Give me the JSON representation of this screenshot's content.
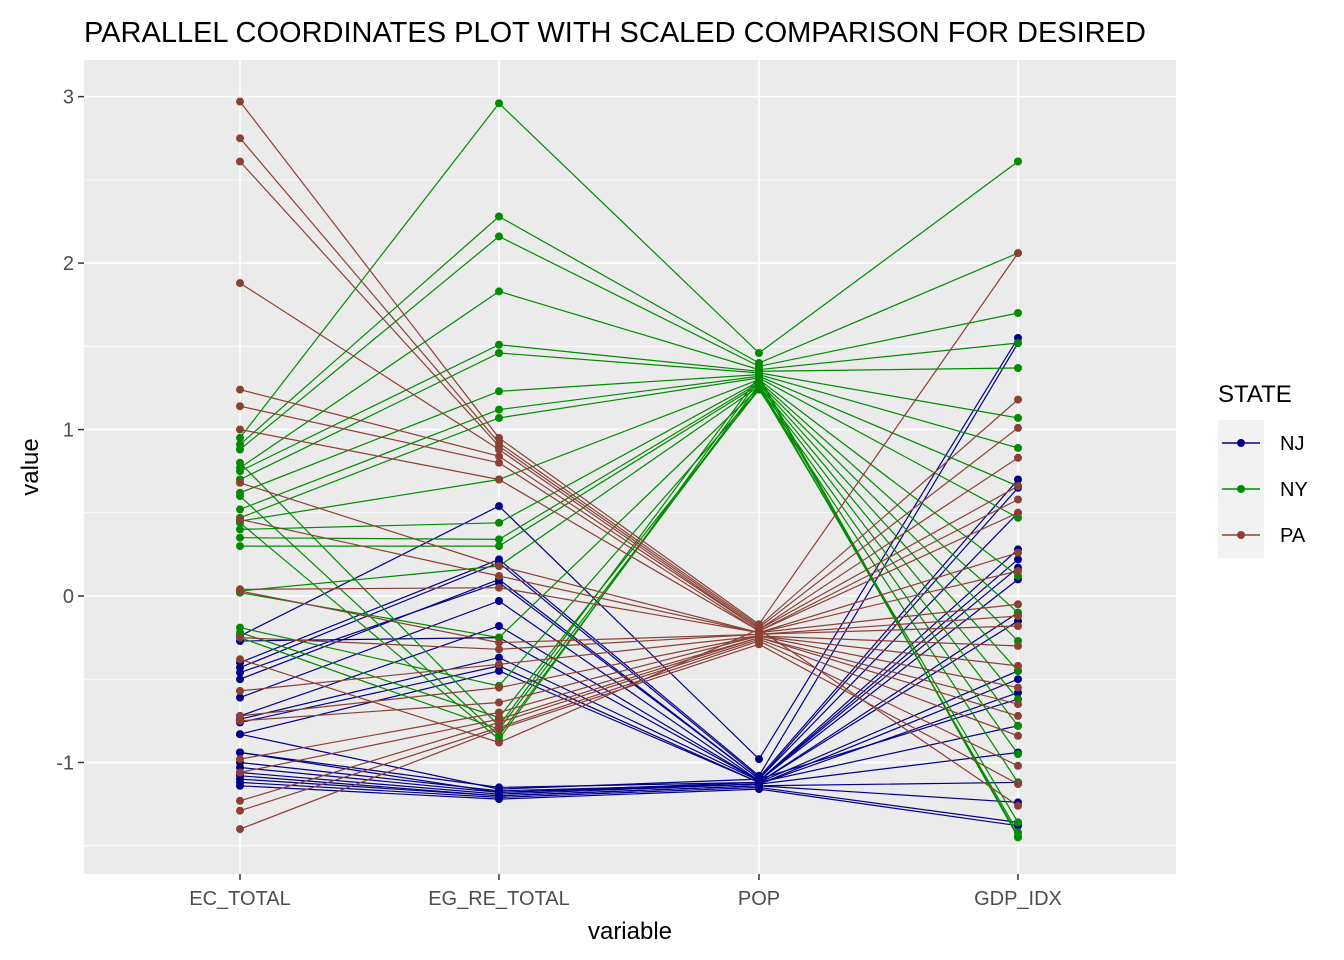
{
  "chart_data": {
    "type": "line",
    "title": "PARALLEL COORDINATES PLOT WITH SCALED COMPARISON FOR DESIRED",
    "xlabel": "variable",
    "ylabel": "value",
    "categories": [
      "EC_TOTAL",
      "EG_RE_TOTAL",
      "POP",
      "GDP_IDX"
    ],
    "ylim": [
      -1.67,
      3.22
    ],
    "yticks": [
      -1,
      0,
      1,
      2,
      3
    ],
    "yticklabels": [
      "-1",
      "0",
      "1",
      "2",
      "3"
    ],
    "grid": true,
    "legend": {
      "title": "STATE",
      "position": "right"
    },
    "colors": {
      "NJ": "#00008b",
      "NY": "#008b00",
      "PA": "#8b4035"
    },
    "series": [
      {
        "name": "NJ",
        "lines": [
          [
            -0.24,
            0.54,
            -0.98,
            1.55
          ],
          [
            -0.4,
            0.22,
            -1.08,
            1.52
          ],
          [
            -0.43,
            0.2,
            -1.09,
            0.7
          ],
          [
            -0.46,
            0.08,
            -1.1,
            0.65
          ],
          [
            -0.5,
            0.1,
            -1.1,
            0.5
          ],
          [
            -0.61,
            -0.03,
            -1.11,
            0.28
          ],
          [
            -0.72,
            -0.18,
            -1.11,
            0.22
          ],
          [
            -0.74,
            -0.37,
            -1.11,
            0.17
          ],
          [
            -0.76,
            -0.42,
            -1.12,
            -0.1
          ],
          [
            -0.83,
            -0.45,
            -1.12,
            -0.15
          ],
          [
            -0.94,
            -1.15,
            -1.12,
            -0.45
          ],
          [
            -1.0,
            -1.17,
            -1.13,
            -0.5
          ],
          [
            -1.03,
            -1.18,
            -1.13,
            -0.58
          ],
          [
            -1.06,
            -1.19,
            -1.13,
            -0.94
          ],
          [
            -1.08,
            -1.2,
            -1.14,
            -1.12
          ],
          [
            -1.1,
            -1.2,
            -1.14,
            -1.24
          ],
          [
            -1.12,
            -1.21,
            -1.15,
            -1.36
          ],
          [
            -1.14,
            -1.22,
            -1.16,
            -1.38
          ],
          [
            -0.27,
            -0.25,
            -1.11,
            0.1
          ],
          [
            -0.83,
            -1.16,
            -1.1,
            -0.62
          ],
          [
            -0.94,
            -1.18,
            -1.12,
            -0.78
          ]
        ]
      },
      {
        "name": "NY",
        "lines": [
          [
            0.95,
            2.96,
            1.46,
            2.61
          ],
          [
            0.91,
            2.28,
            1.4,
            2.06
          ],
          [
            0.88,
            2.16,
            1.38,
            1.7
          ],
          [
            0.77,
            1.83,
            1.36,
            1.52
          ],
          [
            0.75,
            1.51,
            1.35,
            1.37
          ],
          [
            0.7,
            1.46,
            1.34,
            1.07
          ],
          [
            0.62,
            1.23,
            1.33,
            0.89
          ],
          [
            0.52,
            1.12,
            1.32,
            0.66
          ],
          [
            0.47,
            1.07,
            1.31,
            0.47
          ],
          [
            0.45,
            0.7,
            1.3,
            0.12
          ],
          [
            0.4,
            0.44,
            1.29,
            -0.1
          ],
          [
            0.35,
            0.34,
            1.28,
            -0.27
          ],
          [
            0.3,
            0.3,
            1.27,
            -0.45
          ],
          [
            0.03,
            0.18,
            1.26,
            -0.62
          ],
          [
            0.02,
            -0.25,
            1.25,
            -0.78
          ],
          [
            -0.19,
            -0.54,
            1.24,
            -0.95
          ],
          [
            -0.22,
            -0.73,
            1.24,
            -1.12
          ],
          [
            -0.25,
            -0.8,
            1.25,
            -1.36
          ],
          [
            0.6,
            -0.84,
            1.27,
            -1.42
          ],
          [
            0.44,
            -0.86,
            1.3,
            -1.44
          ],
          [
            0.8,
            -0.78,
            1.32,
            -1.45
          ]
        ]
      },
      {
        "name": "PA",
        "lines": [
          [
            2.97,
            0.95,
            -0.17,
            2.06
          ],
          [
            2.75,
            0.92,
            -0.18,
            1.18
          ],
          [
            2.61,
            0.9,
            -0.19,
            1.01
          ],
          [
            1.88,
            0.88,
            -0.2,
            0.83
          ],
          [
            1.24,
            0.84,
            -0.2,
            0.66
          ],
          [
            1.14,
            0.8,
            -0.21,
            0.58
          ],
          [
            1.0,
            0.7,
            -0.21,
            0.5
          ],
          [
            0.68,
            0.18,
            -0.22,
            0.26
          ],
          [
            0.46,
            0.12,
            -0.22,
            0.15
          ],
          [
            0.04,
            0.05,
            -0.22,
            -0.05
          ],
          [
            0.03,
            -0.28,
            -0.23,
            -0.12
          ],
          [
            -0.25,
            -0.32,
            -0.23,
            -0.18
          ],
          [
            -0.57,
            -0.41,
            -0.24,
            -0.3
          ],
          [
            -0.72,
            -0.55,
            -0.24,
            -0.42
          ],
          [
            -0.75,
            -0.64,
            -0.24,
            -0.55
          ],
          [
            -0.98,
            -0.7,
            -0.25,
            -0.65
          ],
          [
            -1.06,
            -0.74,
            -0.25,
            -0.72
          ],
          [
            -1.23,
            -0.76,
            -0.26,
            -0.84
          ],
          [
            -1.29,
            -0.79,
            -0.27,
            -1.02
          ],
          [
            -1.4,
            -0.8,
            -0.29,
            -1.13
          ],
          [
            -0.38,
            -0.88,
            -0.2,
            -1.26
          ]
        ]
      }
    ]
  }
}
